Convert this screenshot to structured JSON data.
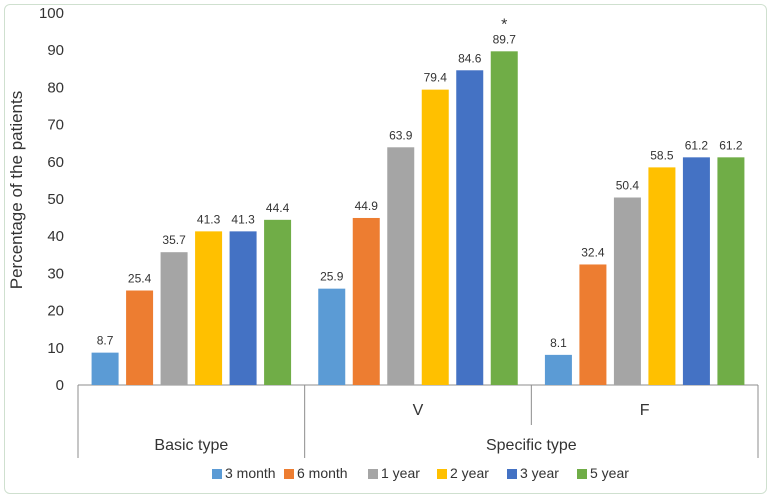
{
  "chart_data": {
    "type": "bar",
    "ylabel": "Percentage of the patients",
    "ylim": [
      0,
      100
    ],
    "yticks": [
      0,
      10,
      20,
      30,
      40,
      50,
      60,
      70,
      80,
      90,
      100
    ],
    "categories": [
      {
        "label": "",
        "group": "Basic type"
      },
      {
        "label": "V",
        "group": "Specific type"
      },
      {
        "label": "F",
        "group": "Specific type"
      }
    ],
    "groups": [
      "Basic type",
      "Specific type"
    ],
    "series": [
      {
        "name": "3 month",
        "color": "#5b9bd5",
        "values": [
          8.7,
          25.9,
          8.1
        ]
      },
      {
        "name": "6 month",
        "color": "#ed7d31",
        "values": [
          25.4,
          44.9,
          32.4
        ]
      },
      {
        "name": "1 year",
        "color": "#a5a5a5",
        "values": [
          35.7,
          63.9,
          50.4
        ]
      },
      {
        "name": "2 year",
        "color": "#ffc000",
        "values": [
          41.3,
          79.4,
          58.5
        ]
      },
      {
        "name": "3 year",
        "color": "#4472c4",
        "values": [
          41.3,
          84.6,
          61.2
        ]
      },
      {
        "name": "5 year",
        "color": "#70ad47",
        "values": [
          44.4,
          89.7,
          61.2
        ]
      }
    ],
    "annotations": [
      {
        "text": "*",
        "category": 1,
        "series": 5
      }
    ],
    "grid": false,
    "legend": "bottom"
  }
}
